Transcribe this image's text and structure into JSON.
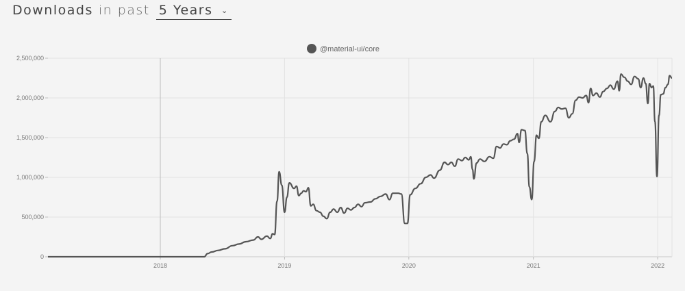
{
  "header": {
    "title": "Downloads",
    "in_past": "in past",
    "period": "5 Years"
  },
  "chart_data": {
    "type": "line",
    "title": "",
    "xlabel": "",
    "ylabel": "",
    "ylim": [
      0,
      2500000
    ],
    "yticks": [
      0,
      500000,
      1000000,
      1500000,
      2000000,
      2500000
    ],
    "ytick_labels": [
      "0",
      "500,000",
      "1,000,000",
      "1,500,000",
      "2,000,000",
      "2,500,000"
    ],
    "xlim": [
      "2017-02-05",
      "2022-02-12"
    ],
    "xticks": [
      "2018-01-01",
      "2019-01-01",
      "2020-01-01",
      "2021-01-01",
      "2022-01-01"
    ],
    "xtick_labels": [
      "2018",
      "2019",
      "2020",
      "2021",
      "2022"
    ],
    "legend_position": "top-center",
    "grid": true,
    "series": [
      {
        "name": "@material-ui/core",
        "color": "#555555",
        "points": [
          [
            "2017-02-05",
            0
          ],
          [
            "2017-06-01",
            0
          ],
          [
            "2017-10-01",
            0
          ],
          [
            "2018-01-01",
            0
          ],
          [
            "2018-04-01",
            0
          ],
          [
            "2018-05-10",
            0
          ],
          [
            "2018-05-20",
            40000
          ],
          [
            "2018-06-01",
            60000
          ],
          [
            "2018-06-20",
            80000
          ],
          [
            "2018-07-10",
            100000
          ],
          [
            "2018-08-01",
            140000
          ],
          [
            "2018-08-20",
            160000
          ],
          [
            "2018-09-10",
            190000
          ],
          [
            "2018-10-01",
            210000
          ],
          [
            "2018-10-15",
            250000
          ],
          [
            "2018-10-25",
            220000
          ],
          [
            "2018-11-10",
            260000
          ],
          [
            "2018-11-20",
            230000
          ],
          [
            "2018-11-27",
            290000
          ],
          [
            "2018-12-03",
            280000
          ],
          [
            "2018-12-10",
            700000
          ],
          [
            "2018-12-16",
            1070000
          ],
          [
            "2018-12-24",
            900000
          ],
          [
            "2019-01-01",
            560000
          ],
          [
            "2019-01-08",
            750000
          ],
          [
            "2019-01-15",
            930000
          ],
          [
            "2019-01-29",
            860000
          ],
          [
            "2019-02-05",
            890000
          ],
          [
            "2019-02-12",
            770000
          ],
          [
            "2019-02-19",
            800000
          ],
          [
            "2019-02-26",
            830000
          ],
          [
            "2019-03-05",
            820000
          ],
          [
            "2019-03-12",
            870000
          ],
          [
            "2019-03-19",
            640000
          ],
          [
            "2019-03-26",
            660000
          ],
          [
            "2019-04-05",
            580000
          ],
          [
            "2019-04-15",
            560000
          ],
          [
            "2019-04-25",
            510000
          ],
          [
            "2019-05-05",
            480000
          ],
          [
            "2019-05-15",
            560000
          ],
          [
            "2019-05-25",
            600000
          ],
          [
            "2019-06-05",
            560000
          ],
          [
            "2019-06-15",
            620000
          ],
          [
            "2019-06-25",
            550000
          ],
          [
            "2019-07-05",
            610000
          ],
          [
            "2019-07-15",
            590000
          ],
          [
            "2019-07-25",
            620000
          ],
          [
            "2019-08-05",
            660000
          ],
          [
            "2019-08-15",
            630000
          ],
          [
            "2019-08-25",
            680000
          ],
          [
            "2019-09-10",
            690000
          ],
          [
            "2019-09-25",
            730000
          ],
          [
            "2019-10-10",
            760000
          ],
          [
            "2019-10-25",
            790000
          ],
          [
            "2019-11-05",
            720000
          ],
          [
            "2019-11-15",
            800000
          ],
          [
            "2019-12-01",
            800000
          ],
          [
            "2019-12-10",
            790000
          ],
          [
            "2019-12-20",
            420000
          ],
          [
            "2019-12-28",
            420000
          ],
          [
            "2020-01-05",
            780000
          ],
          [
            "2020-01-20",
            860000
          ],
          [
            "2020-02-05",
            920000
          ],
          [
            "2020-02-20",
            1000000
          ],
          [
            "2020-03-05",
            1030000
          ],
          [
            "2020-03-15",
            990000
          ],
          [
            "2020-04-01",
            1090000
          ],
          [
            "2020-04-15",
            1190000
          ],
          [
            "2020-04-25",
            1160000
          ],
          [
            "2020-05-05",
            1190000
          ],
          [
            "2020-05-15",
            1140000
          ],
          [
            "2020-05-25",
            1230000
          ],
          [
            "2020-06-05",
            1210000
          ],
          [
            "2020-06-15",
            1250000
          ],
          [
            "2020-06-25",
            1220000
          ],
          [
            "2020-07-01",
            1260000
          ],
          [
            "2020-07-06",
            1100000
          ],
          [
            "2020-07-10",
            980000
          ],
          [
            "2020-07-18",
            1180000
          ],
          [
            "2020-07-28",
            1230000
          ],
          [
            "2020-08-10",
            1200000
          ],
          [
            "2020-08-25",
            1260000
          ],
          [
            "2020-09-05",
            1240000
          ],
          [
            "2020-09-15",
            1390000
          ],
          [
            "2020-09-25",
            1370000
          ],
          [
            "2020-10-05",
            1420000
          ],
          [
            "2020-10-15",
            1410000
          ],
          [
            "2020-10-25",
            1460000
          ],
          [
            "2020-11-05",
            1480000
          ],
          [
            "2020-11-15",
            1550000
          ],
          [
            "2020-11-20",
            1440000
          ],
          [
            "2020-11-27",
            1600000
          ],
          [
            "2020-12-07",
            1590000
          ],
          [
            "2020-12-14",
            1300000
          ],
          [
            "2020-12-20",
            880000
          ],
          [
            "2020-12-27",
            720000
          ],
          [
            "2021-01-03",
            1200000
          ],
          [
            "2021-01-10",
            1530000
          ],
          [
            "2021-01-17",
            1490000
          ],
          [
            "2021-01-24",
            1700000
          ],
          [
            "2021-02-05",
            1780000
          ],
          [
            "2021-02-20",
            1700000
          ],
          [
            "2021-03-05",
            1830000
          ],
          [
            "2021-03-15",
            1880000
          ],
          [
            "2021-03-25",
            1860000
          ],
          [
            "2021-04-05",
            1870000
          ],
          [
            "2021-04-15",
            1750000
          ],
          [
            "2021-04-25",
            1800000
          ],
          [
            "2021-05-05",
            1970000
          ],
          [
            "2021-05-15",
            2010000
          ],
          [
            "2021-05-25",
            2000000
          ],
          [
            "2021-06-05",
            2030000
          ],
          [
            "2021-06-12",
            1940000
          ],
          [
            "2021-06-18",
            2120000
          ],
          [
            "2021-06-25",
            2030000
          ],
          [
            "2021-07-05",
            2060000
          ],
          [
            "2021-07-15",
            2010000
          ],
          [
            "2021-07-25",
            2080000
          ],
          [
            "2021-08-05",
            2120000
          ],
          [
            "2021-08-15",
            2160000
          ],
          [
            "2021-08-25",
            2110000
          ],
          [
            "2021-09-05",
            2210000
          ],
          [
            "2021-09-10",
            2090000
          ],
          [
            "2021-09-15",
            2300000
          ],
          [
            "2021-09-25",
            2260000
          ],
          [
            "2021-10-05",
            2210000
          ],
          [
            "2021-10-15",
            2170000
          ],
          [
            "2021-10-25",
            2270000
          ],
          [
            "2021-11-05",
            2240000
          ],
          [
            "2021-11-12",
            2130000
          ],
          [
            "2021-11-20",
            2250000
          ],
          [
            "2021-11-27",
            2180000
          ],
          [
            "2021-12-03",
            1930000
          ],
          [
            "2021-12-08",
            2180000
          ],
          [
            "2021-12-14",
            2130000
          ],
          [
            "2021-12-19",
            2150000
          ],
          [
            "2021-12-24",
            1700000
          ],
          [
            "2021-12-30",
            1010000
          ],
          [
            "2022-01-05",
            1780000
          ],
          [
            "2022-01-10",
            2040000
          ],
          [
            "2022-01-17",
            2050000
          ],
          [
            "2022-01-24",
            2130000
          ],
          [
            "2022-01-31",
            2170000
          ],
          [
            "2022-02-05",
            2280000
          ],
          [
            "2022-02-12",
            2250000
          ]
        ]
      }
    ]
  }
}
